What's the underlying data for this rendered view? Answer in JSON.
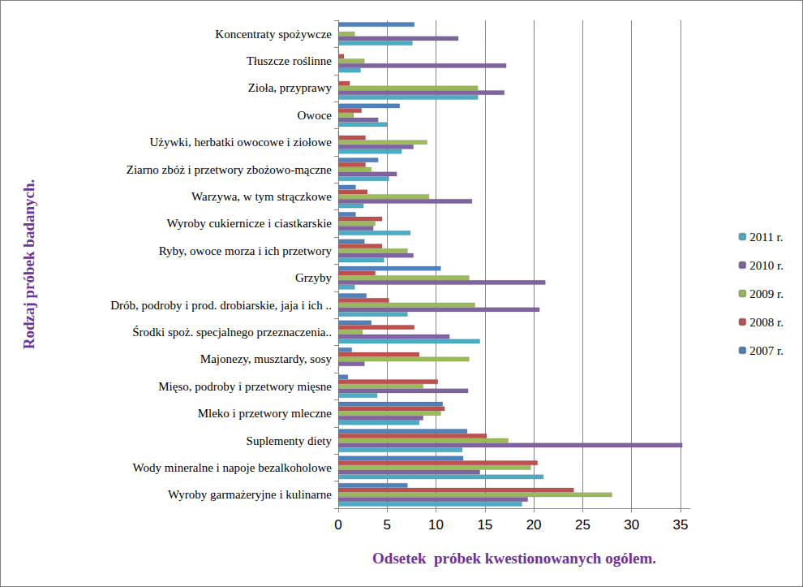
{
  "chart_data": {
    "type": "bar",
    "orientation": "horizontal",
    "xlabel": "Odsetek  próbek kwestionowanych ogólem.",
    "ylabel": "Rodzaj próbek badanych.",
    "categories": [
      "Wyroby garmażeryjne i kulinarne",
      "Wody mineralne i napoje bezalkoholowe",
      "Suplementy diety",
      "Mleko i przetwory mleczne",
      "Mięso, podroby i przetwory mięsne",
      "Majonezy, musztardy, sosy",
      "Środki spoż. specjalnego przeznaczenia..",
      "Drób, podroby i prod. drobiarskie, jaja i ich ..",
      "Grzyby",
      "Ryby, owoce morza i ich przetwory",
      "Wyroby cukiernicze i ciastkarskie",
      "Warzywa, w tym strączkowe",
      "Ziarno zbóż i przetwory zbożowo-mączne",
      "Używki, herbatki owocowe i ziołowe",
      "Owoce",
      "Zioła, przyprawy",
      "Tłuszcze roślinne",
      "Koncentraty spożywcze"
    ],
    "series": [
      {
        "name": "2007 r.",
        "color": "#4f81bd",
        "values": [
          7.1,
          12.8,
          13.2,
          10.7,
          1.0,
          1.4,
          3.4,
          2.9,
          10.5,
          2.7,
          1.8,
          1.8,
          4.1,
          0,
          6.3,
          0,
          0,
          7.8
        ]
      },
      {
        "name": "2008 r.",
        "color": "#c0504d",
        "values": [
          24.1,
          20.4,
          15.2,
          10.9,
          10.2,
          8.3,
          7.8,
          5.2,
          3.8,
          4.5,
          4.5,
          3.0,
          2.8,
          2.8,
          2.4,
          1.2,
          0.6,
          0
        ]
      },
      {
        "name": "2009 r.",
        "color": "#9bbb59",
        "values": [
          28.0,
          19.7,
          17.4,
          10.5,
          8.7,
          13.4,
          2.5,
          14.0,
          13.4,
          7.1,
          3.8,
          9.3,
          3.4,
          9.1,
          1.6,
          14.3,
          2.7,
          1.7
        ]
      },
      {
        "name": "2010 r.",
        "color": "#8064a2",
        "values": [
          19.4,
          14.5,
          35.2,
          8.7,
          13.3,
          2.7,
          11.4,
          20.6,
          21.2,
          7.7,
          3.6,
          13.7,
          6.0,
          7.7,
          4.1,
          17.0,
          17.2,
          12.3
        ]
      },
      {
        "name": "2011 r.",
        "color": "#4bacc6",
        "values": [
          18.8,
          21.0,
          12.7,
          8.3,
          4.0,
          0,
          14.5,
          7.1,
          1.7,
          4.7,
          7.4,
          2.6,
          5.2,
          6.5,
          5.0,
          14.3,
          2.3,
          7.6
        ]
      }
    ],
    "xlim": [
      0,
      36
    ],
    "xticks": [
      0,
      5,
      10,
      15,
      20,
      25,
      30,
      35
    ],
    "grid": true,
    "legend": "right"
  }
}
